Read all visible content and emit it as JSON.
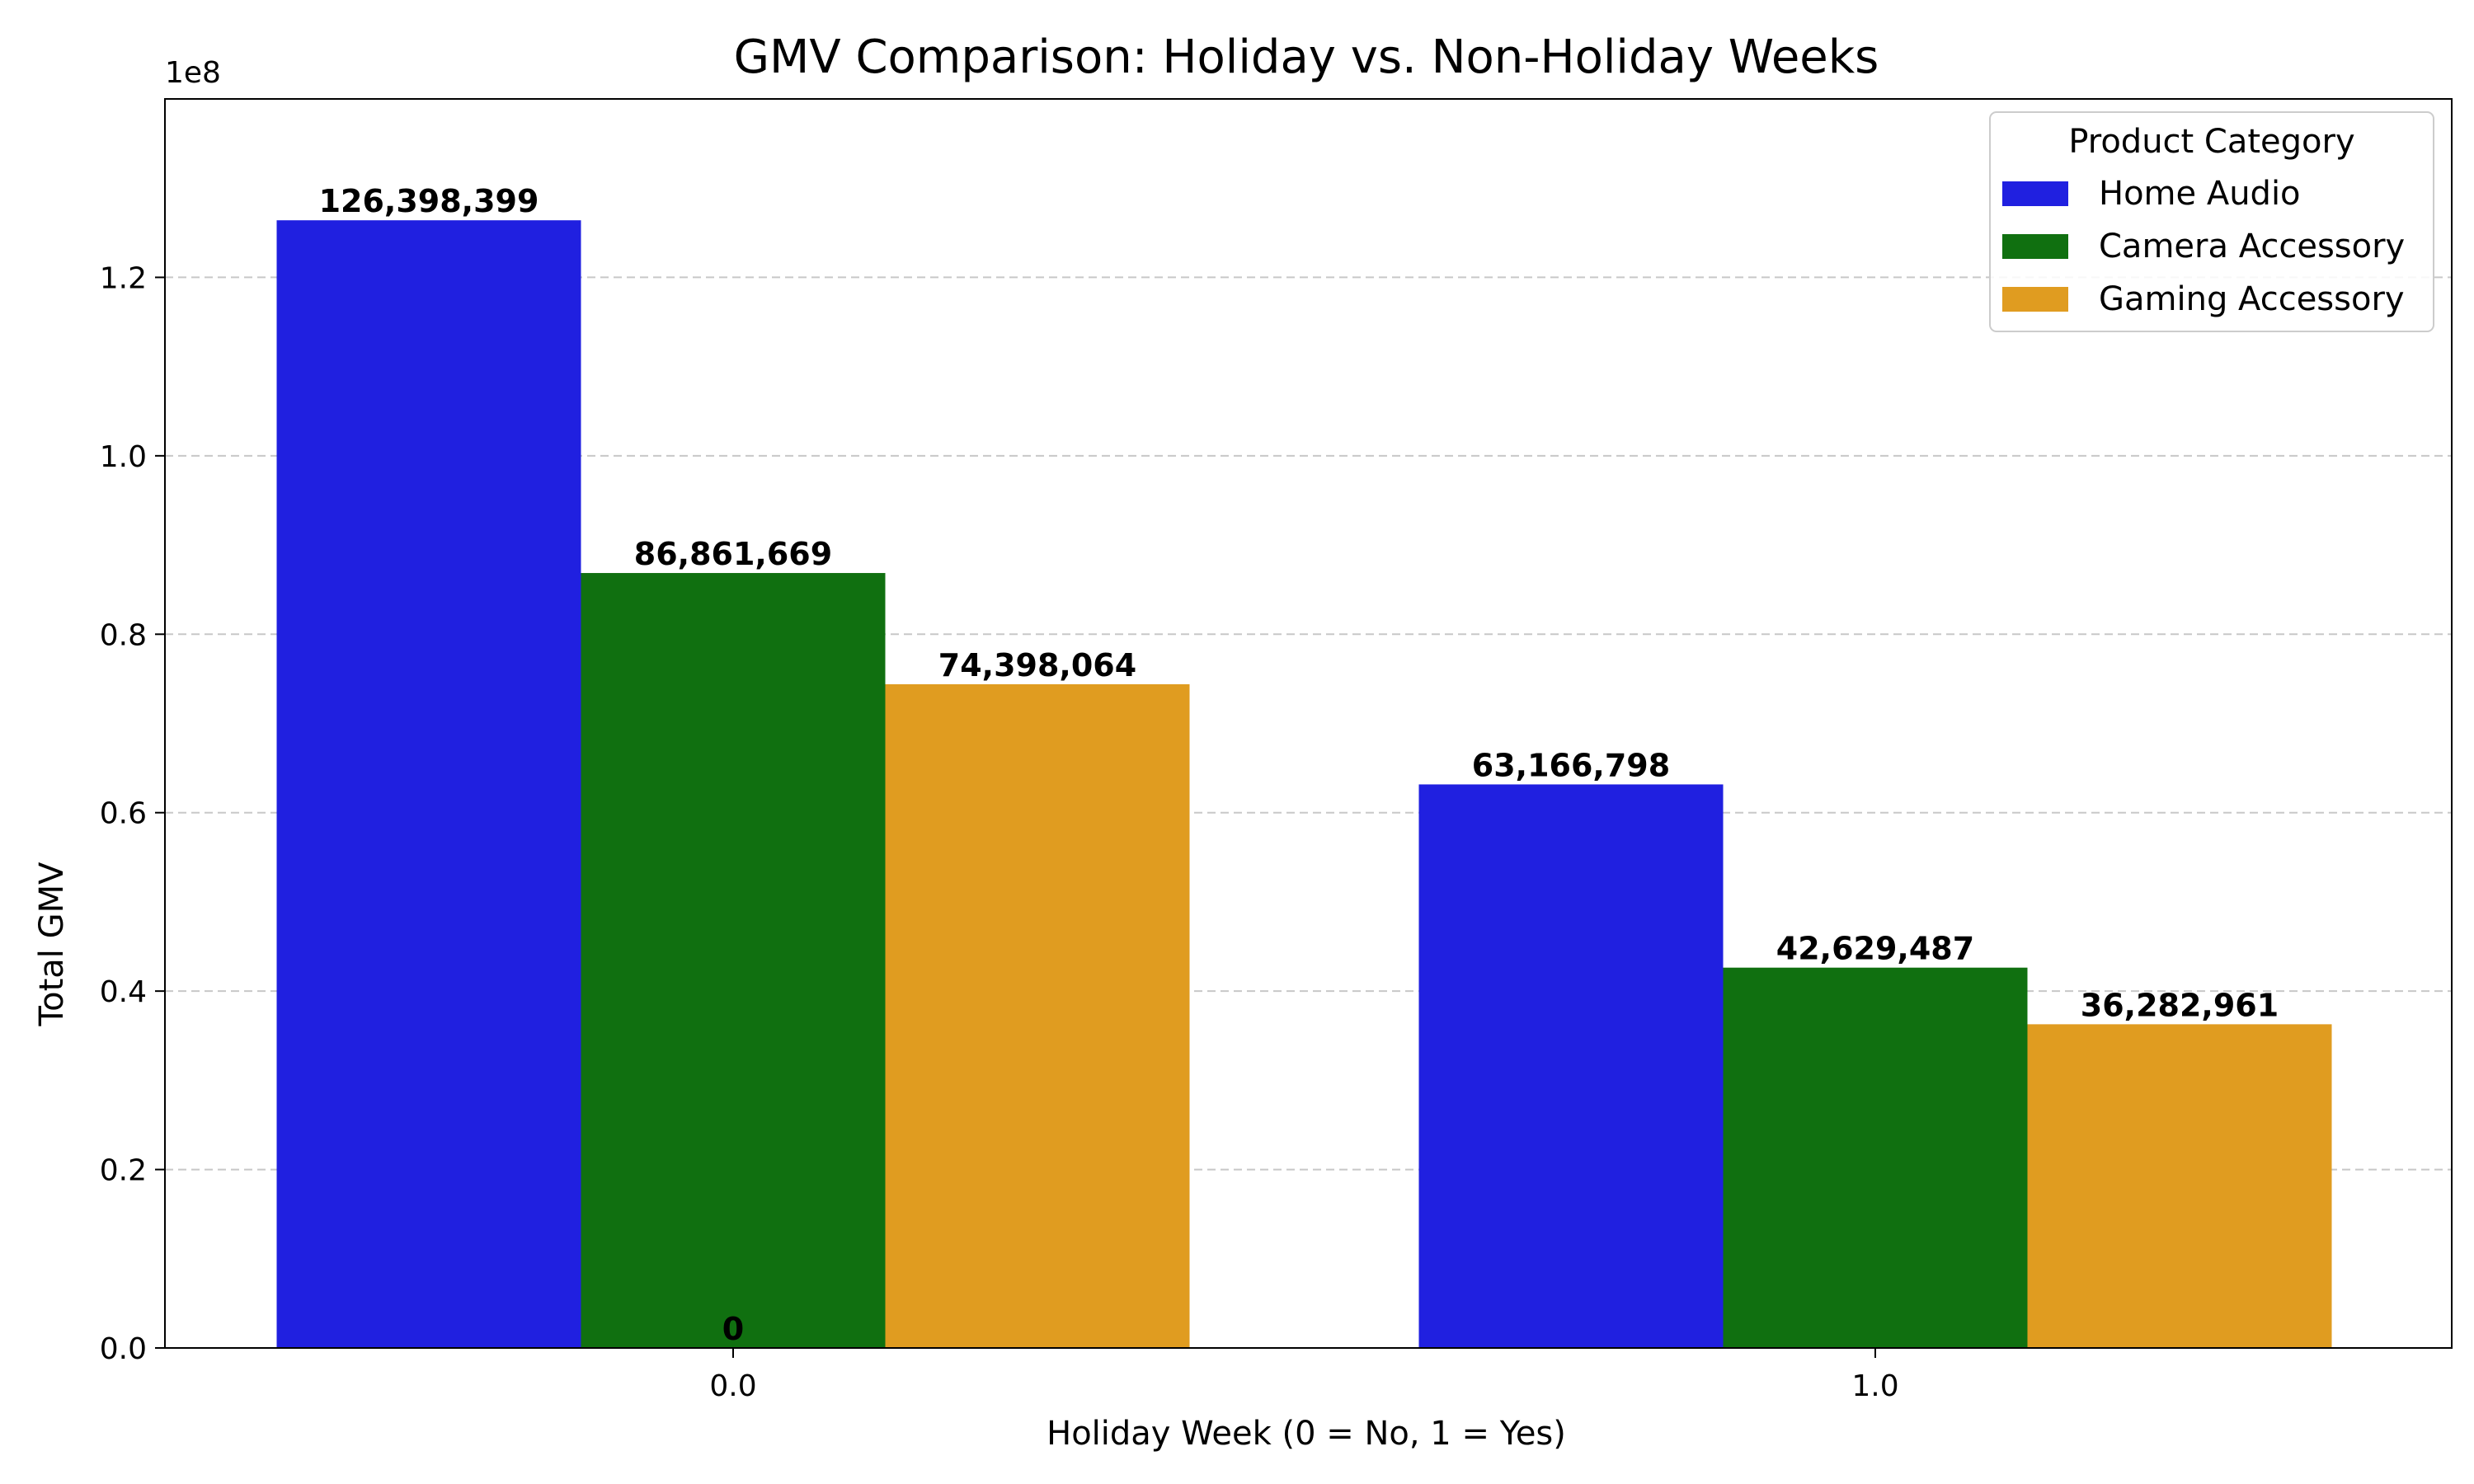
{
  "chart_data": {
    "type": "bar",
    "title": "GMV Comparison: Holiday vs. Non-Holiday Weeks",
    "xlabel": "Holiday Week (0 = No, 1 = Yes)",
    "ylabel": "Total GMV",
    "offset_label": "1e8",
    "categories": [
      "0.0",
      "1.0"
    ],
    "series": [
      {
        "name": "Home Audio",
        "color": "#2020e0",
        "values": [
          126398399,
          63166798
        ]
      },
      {
        "name": "Camera Accessory",
        "color": "#107010",
        "values": [
          86861669,
          42629487
        ]
      },
      {
        "name": "Gaming Accessory",
        "color": "#e09c20",
        "values": [
          74398064,
          36282961
        ]
      }
    ],
    "value_labels": [
      [
        "126,398,399",
        "63,166,798"
      ],
      [
        "86,861,669",
        "42,629,487"
      ],
      [
        "74,398,064",
        "36,282,961"
      ]
    ],
    "extra_label": "0",
    "ylim": [
      0,
      140000000
    ],
    "yticks": [
      0,
      20000000,
      40000000,
      60000000,
      80000000,
      100000000,
      120000000
    ],
    "ytick_labels": [
      "0.0",
      "0.2",
      "0.4",
      "0.6",
      "0.8",
      "1.0",
      "1.2"
    ],
    "grid": "y-dashed",
    "legend": {
      "title": "Product Category",
      "placement": "top-right"
    }
  }
}
